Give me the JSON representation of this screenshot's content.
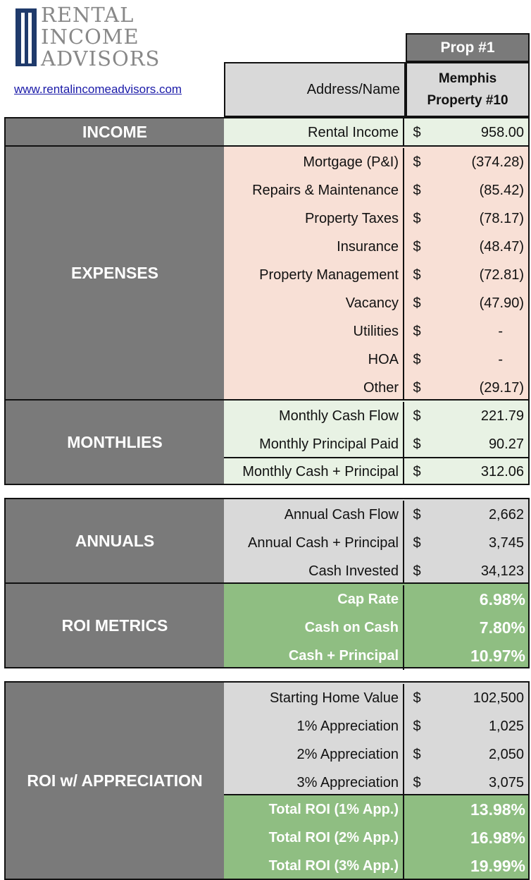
{
  "logo": {
    "lines": [
      "RENTAL",
      "INCOME",
      "ADVISORS"
    ],
    "url": "www.rentalincomeadvisors.com"
  },
  "header": {
    "prop_label": "Prop #1",
    "address_label": "Address/Name",
    "address_line1": "Memphis",
    "address_line2": "Property #10"
  },
  "sections": {
    "income": "INCOME",
    "expenses": "EXPENSES",
    "monthlies": "MONTHLIES",
    "annuals": "ANNUALS",
    "roi_metrics": "ROI METRICS",
    "roi_appreciation": "ROI w/ APPRECIATION"
  },
  "income": [
    {
      "label": "Rental Income",
      "currency": "$",
      "value": "958.00"
    }
  ],
  "expenses": [
    {
      "label": "Mortgage (P&I)",
      "currency": "$",
      "value": "(374.28)"
    },
    {
      "label": "Repairs & Maintenance",
      "currency": "$",
      "value": "(85.42)"
    },
    {
      "label": "Property Taxes",
      "currency": "$",
      "value": "(78.17)"
    },
    {
      "label": "Insurance",
      "currency": "$",
      "value": "(48.47)"
    },
    {
      "label": "Property Management",
      "currency": "$",
      "value": "(72.81)"
    },
    {
      "label": "Vacancy",
      "currency": "$",
      "value": "(47.90)"
    },
    {
      "label": "Utilities",
      "currency": "$",
      "value": "-"
    },
    {
      "label": "HOA",
      "currency": "$",
      "value": "-"
    },
    {
      "label": "Other",
      "currency": "$",
      "value": "(29.17)"
    }
  ],
  "monthlies": [
    {
      "label": "Monthly Cash Flow",
      "currency": "$",
      "value": "221.79"
    },
    {
      "label": "Monthly Principal Paid",
      "currency": "$",
      "value": "90.27"
    },
    {
      "label": "Monthly Cash + Principal",
      "currency": "$",
      "value": "312.06"
    }
  ],
  "annuals": [
    {
      "label": "Annual Cash Flow",
      "currency": "$",
      "value": "2,662"
    },
    {
      "label": "Annual Cash + Principal",
      "currency": "$",
      "value": "3,745"
    },
    {
      "label": "Cash Invested",
      "currency": "$",
      "value": "34,123"
    }
  ],
  "roi_metrics": [
    {
      "label": "Cap Rate",
      "value": "6.98%"
    },
    {
      "label": "Cash on Cash",
      "value": "7.80%"
    },
    {
      "label": "Cash + Principal",
      "value": "10.97%"
    }
  ],
  "appreciation": [
    {
      "label": "Starting Home Value",
      "currency": "$",
      "value": "102,500"
    },
    {
      "label": "1% Appreciation",
      "currency": "$",
      "value": "1,025"
    },
    {
      "label": "2% Appreciation",
      "currency": "$",
      "value": "2,050"
    },
    {
      "label": "3% Appreciation",
      "currency": "$",
      "value": "3,075"
    }
  ],
  "appreciation_totals": [
    {
      "label": "Total ROI (1% App.)",
      "value": "13.98%"
    },
    {
      "label": "Total ROI (2% App.)",
      "value": "16.98%"
    },
    {
      "label": "Total ROI (3% App.)",
      "value": "19.99%"
    }
  ],
  "colors": {
    "section_gray": "#7a7a7a",
    "income_green": "#e8f2e4",
    "expense_pink": "#f8e0d6",
    "metric_green": "#8fbe82",
    "link_blue": "#1a1aa8"
  }
}
